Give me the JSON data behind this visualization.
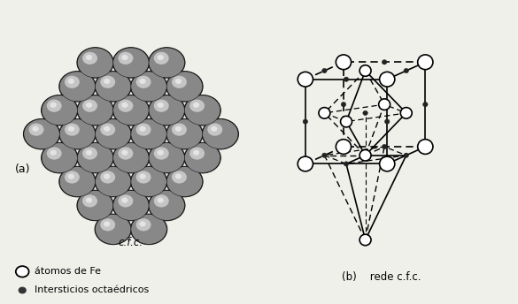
{
  "background_color": "#f0f0eb",
  "label_a": "(a)",
  "label_b": "(b)",
  "caption_a": "c.f.c.",
  "caption_b": "rede c.f.c.",
  "legend_circle_label": "átomos de Fe",
  "legend_dot_label": "Intersticios octaédricos",
  "fig_width": 5.85,
  "fig_height": 3.44,
  "dpi": 100
}
